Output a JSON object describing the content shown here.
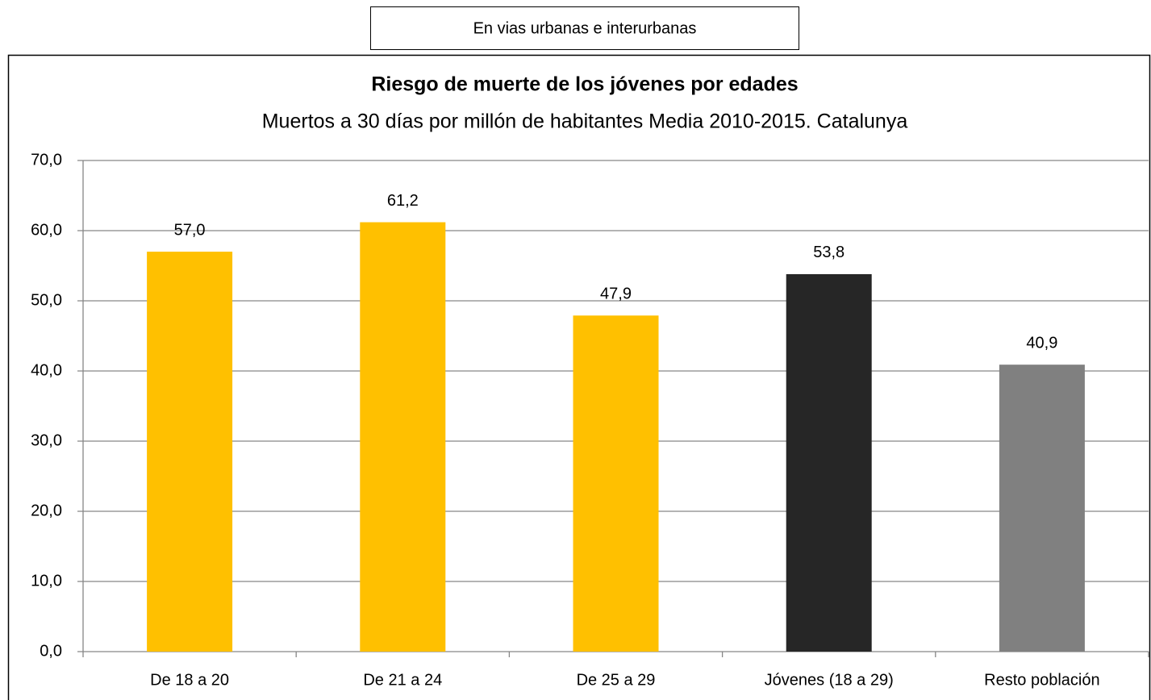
{
  "chart_data": {
    "type": "bar",
    "header": "En vias urbanas e interurbanas",
    "title": "Riesgo de muerte de los jóvenes por edades",
    "subtitle": "Muertos a 30 días por millón de habitantes  Media 2010-2015. Catalunya",
    "categories": [
      "De 18 a 20",
      "De 21 a 24",
      "De 25 a 29",
      "Jóvenes (18 a 29)",
      "Resto población"
    ],
    "values": [
      57.0,
      61.2,
      47.9,
      53.8,
      40.9
    ],
    "value_labels": [
      "57,0",
      "61,2",
      "47,9",
      "53,8",
      "40,9"
    ],
    "colors": [
      "#ffc000",
      "#ffc000",
      "#ffc000",
      "#262626",
      "#808080"
    ],
    "ylim": [
      0,
      70
    ],
    "yticks": [
      {
        "value": 0,
        "label": "0,0"
      },
      {
        "value": 10,
        "label": "10,0"
      },
      {
        "value": 20,
        "label": "20,0"
      },
      {
        "value": 30,
        "label": "30,0"
      },
      {
        "value": 40,
        "label": "40,0"
      },
      {
        "value": 50,
        "label": "50,0"
      },
      {
        "value": 60,
        "label": "60,0"
      },
      {
        "value": 70,
        "label": "70,0"
      }
    ],
    "grid": true
  }
}
